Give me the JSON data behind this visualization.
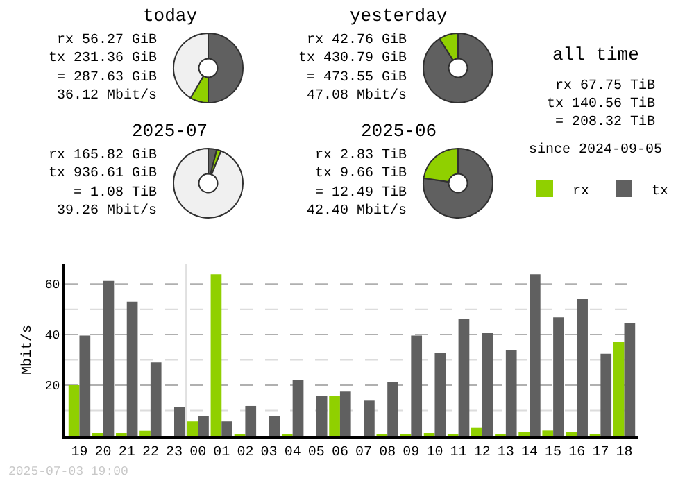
{
  "chart_data": [
    {
      "type": "donut",
      "title": "today",
      "annotations": [
        "rx 56.27 GiB",
        "tx 231.36 GiB",
        "= 287.63 GiB",
        "36.12 Mbit/s"
      ],
      "categories": [
        null,
        null,
        null
      ],
      "values": [
        50,
        8.5,
        41.5
      ],
      "colors": [
        "#606060",
        "#90d000",
        "#f0f0f0"
      ]
    },
    {
      "type": "donut",
      "title": "yesterday",
      "annotations": [
        "rx 42.76 GiB",
        "tx 430.79 GiB",
        "= 473.55 GiB",
        "47.08 Mbit/s"
      ],
      "categories": [
        null,
        null
      ],
      "values": [
        91,
        9
      ],
      "colors": [
        "#606060",
        "#90d000"
      ]
    },
    {
      "type": "other",
      "title": "all time",
      "annotations": [
        "rx 67.75 TiB",
        "tx 140.56 TiB",
        "= 208.32 TiB",
        "since 2024-09-05"
      ]
    },
    {
      "type": "donut",
      "title": "2025-07",
      "annotations": [
        "rx 165.82 GiB",
        "tx 936.61 GiB",
        "= 1.08 TiB",
        "39.26 Mbit/s"
      ],
      "categories": [
        null,
        null,
        null
      ],
      "values": [
        4,
        2,
        94
      ],
      "colors": [
        "#606060",
        "#90d000",
        "#f0f0f0"
      ]
    },
    {
      "type": "donut",
      "title": "2025-06",
      "annotations": [
        "rx 2.83 TiB",
        "tx 9.66 TiB",
        "= 12.49 TiB",
        "42.40 Mbit/s"
      ],
      "categories": [
        null,
        null
      ],
      "values": [
        77.3,
        22.7
      ],
      "colors": [
        "#606060",
        "#90d000"
      ]
    },
    {
      "type": "bar",
      "ylabel": "Mbit/s",
      "annotations": [
        "2025-07-03 19:00"
      ],
      "legend": "top right",
      "grid": "y",
      "categories": [
        "19",
        "20",
        "21",
        "22",
        "23",
        "00",
        "01",
        "02",
        "03",
        "04",
        "05",
        "06",
        "07",
        "08",
        "09",
        "10",
        "11",
        "12",
        "13",
        "14",
        "15",
        "16",
        "17",
        "18"
      ],
      "series": [
        {
          "name": "rx",
          "color": "#90d000",
          "values": [
            20.0,
            1.0,
            1.0,
            2.0,
            0,
            5.7,
            63.8,
            0.5,
            0,
            0.5,
            0,
            15.9,
            0,
            0.5,
            0.5,
            1.0,
            0.5,
            3.1,
            0.5,
            1.5,
            2.1,
            1.5,
            0.5,
            37.0
          ]
        },
        {
          "name": "tx",
          "color": "#606060",
          "values": [
            39.6,
            61.2,
            53.0,
            29.0,
            11.3,
            7.7,
            5.7,
            11.8,
            7.7,
            22.1,
            15.9,
            17.5,
            13.9,
            21.1,
            39.6,
            32.9,
            46.3,
            40.6,
            33.9,
            63.8,
            46.8,
            54.0,
            32.4,
            44.7
          ]
        }
      ],
      "ylim": [
        0,
        68
      ],
      "yticks": [
        {
          "value": 10,
          "label": null
        },
        20,
        {
          "value": 30,
          "label": null
        },
        40,
        {
          "value": 50,
          "label": null
        },
        60
      ],
      "ref_lines": [
        {
          "axis": "x",
          "value": "00",
          "color": "#e0e0e0"
        }
      ]
    }
  ]
}
